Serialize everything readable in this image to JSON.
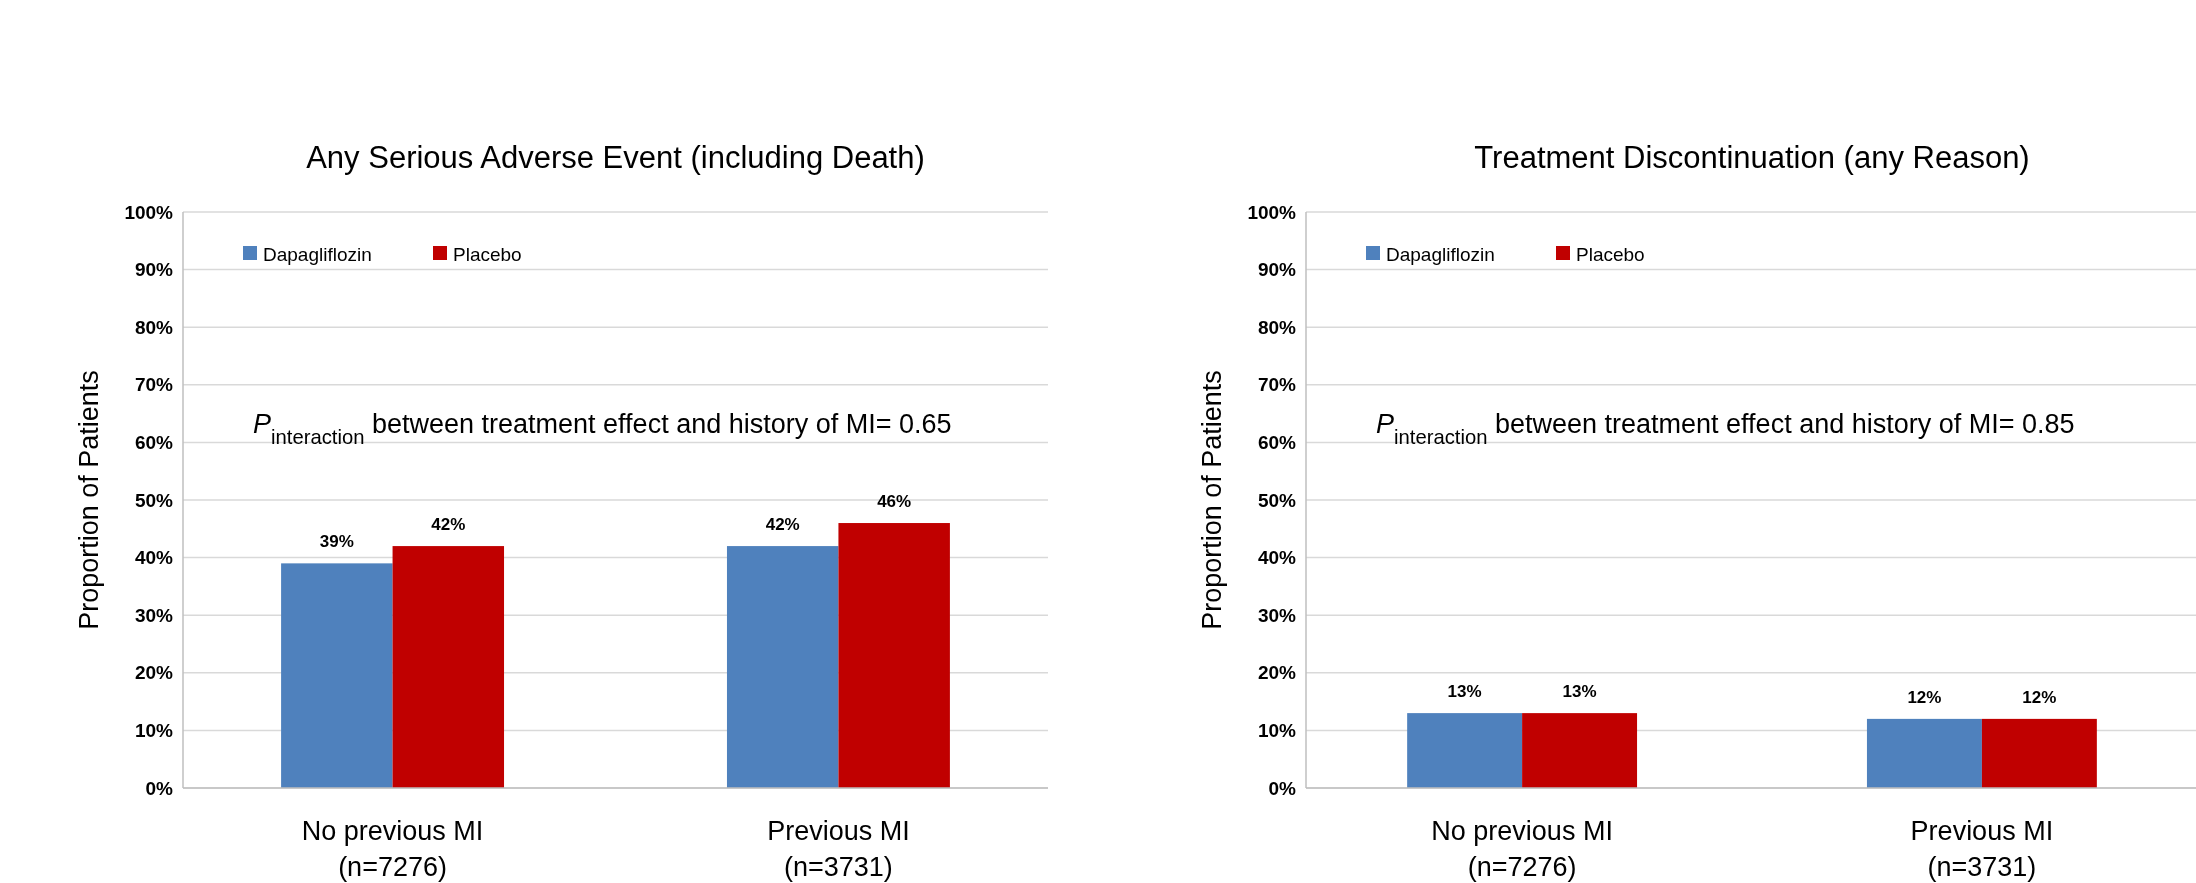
{
  "chart_data": [
    {
      "type": "bar",
      "title": "Any Serious Adverse Event (including Death)",
      "ylabel": "Proportion of Patients",
      "categories": [
        "No previous MI\n(n=7276)",
        "Previous MI\n(n=3731)"
      ],
      "series": [
        {
          "name": "Dapagliflozin",
          "color": "#4f81bd",
          "values": [
            39,
            42
          ],
          "value_labels": [
            "39%",
            "42%"
          ]
        },
        {
          "name": "Placebo",
          "color": "#c00000",
          "values": [
            42,
            46
          ],
          "value_labels": [
            "42%",
            "46%"
          ]
        }
      ],
      "ylim": [
        0,
        100
      ],
      "yticks": [
        {
          "value": 0,
          "label": "0%"
        },
        {
          "value": 10,
          "label": "10%"
        },
        {
          "value": 20,
          "label": "20%"
        },
        {
          "value": 30,
          "label": "30%"
        },
        {
          "value": 40,
          "label": "40%"
        },
        {
          "value": 50,
          "label": "50%"
        },
        {
          "value": 60,
          "label": "60%"
        },
        {
          "value": 70,
          "label": "70%"
        },
        {
          "value": 80,
          "label": "80%"
        },
        {
          "value": 90,
          "label": "90%"
        },
        {
          "value": 100,
          "label": "100%"
        }
      ],
      "grid": "y",
      "legend": "top left",
      "annotations": [
        "P$_{interaction}$ between treatment effect and history of MI= 0.65"
      ]
    },
    {
      "type": "bar",
      "title": "Treatment Discontinuation (any Reason)",
      "ylabel": "Proportion of Patients",
      "categories": [
        "No previous MI\n(n=7276)",
        "Previous MI\n(n=3731)"
      ],
      "series": [
        {
          "name": "Dapagliflozin",
          "color": "#4f81bd",
          "values": [
            13,
            12
          ],
          "value_labels": [
            "13%",
            "12%"
          ]
        },
        {
          "name": "Placebo",
          "color": "#c00000",
          "values": [
            13,
            12
          ],
          "value_labels": [
            "13%",
            "12%"
          ]
        }
      ],
      "ylim": [
        0,
        100
      ],
      "yticks": [
        {
          "value": 0,
          "label": "0%"
        },
        {
          "value": 10,
          "label": "10%"
        },
        {
          "value": 20,
          "label": "20%"
        },
        {
          "value": 30,
          "label": "30%"
        },
        {
          "value": 40,
          "label": "40%"
        },
        {
          "value": 50,
          "label": "50%"
        },
        {
          "value": 60,
          "label": "60%"
        },
        {
          "value": 70,
          "label": "70%"
        },
        {
          "value": 80,
          "label": "80%"
        },
        {
          "value": 90,
          "label": "90%"
        },
        {
          "value": 100,
          "label": "100%"
        }
      ],
      "grid": "y",
      "legend": "top left",
      "annotations": [
        "P$_{interaction}$ between treatment effect and history of MI= 0.85"
      ]
    }
  ]
}
